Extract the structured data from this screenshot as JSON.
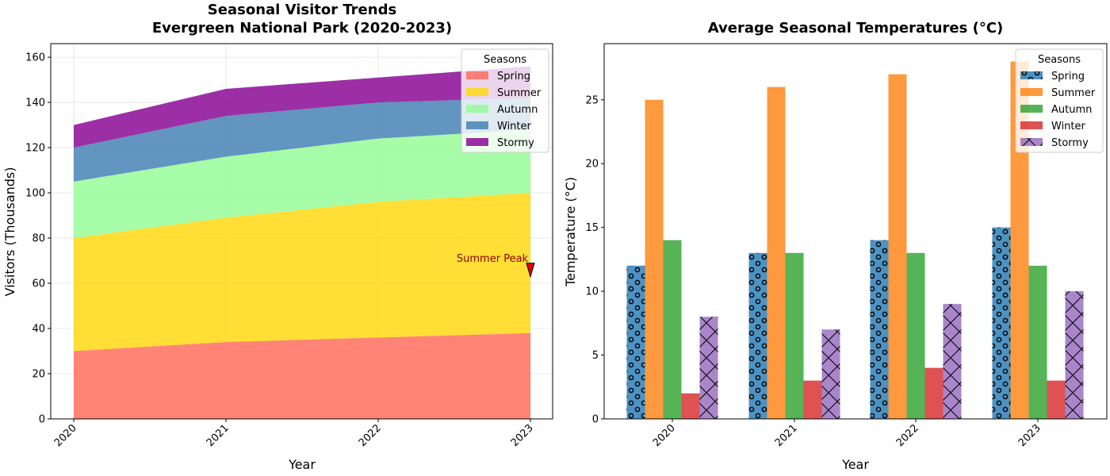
{
  "chart_data": [
    {
      "type": "area",
      "title": "Seasonal Visitor Trends\nEvergreen National Park (2020-2023)",
      "xlabel": "Year",
      "ylabel": "Visitors (Thousands)",
      "x": [
        "2020",
        "2021",
        "2022",
        "2023"
      ],
      "ylim": [
        0,
        166
      ],
      "yticks": [
        0,
        20,
        40,
        60,
        80,
        100,
        120,
        140,
        160
      ],
      "stacked": true,
      "grid": true,
      "legend_title": "Seasons",
      "legend_position": "top-right",
      "series": [
        {
          "name": "Spring",
          "values": [
            30,
            34,
            36,
            38
          ],
          "color": "#ff6f5e"
        },
        {
          "name": "Summer",
          "values": [
            50,
            55,
            60,
            62
          ],
          "color": "#ffd812"
        },
        {
          "name": "Autumn",
          "values": [
            25,
            27,
            28,
            28
          ],
          "color": "#98fb98"
        },
        {
          "name": "Winter",
          "values": [
            15,
            18,
            16,
            14
          ],
          "color": "#4682b4"
        },
        {
          "name": "Stormy",
          "values": [
            10,
            12,
            11,
            14
          ],
          "color": "#8b0a96"
        }
      ],
      "annotation": {
        "text": "Summer Peak",
        "x": "2023",
        "y": 65,
        "color": "#8b0000",
        "marker_color": "#e00000"
      }
    },
    {
      "type": "bar",
      "title": "Average Seasonal Temperatures (°C)",
      "xlabel": "Year",
      "ylabel": "Temperature (°C)",
      "categories": [
        "2020",
        "2021",
        "2022",
        "2023"
      ],
      "ylim": [
        0,
        29.4
      ],
      "yticks": [
        0,
        5,
        10,
        15,
        20,
        25
      ],
      "grid": false,
      "legend_title": "Seasons",
      "legend_position": "top-right",
      "series": [
        {
          "name": "Spring",
          "values": [
            12,
            13,
            14,
            15
          ],
          "color": "#1f77b4",
          "hatch": "circles"
        },
        {
          "name": "Summer",
          "values": [
            25,
            26,
            27,
            28
          ],
          "color": "#ff7f0e",
          "hatch": "none"
        },
        {
          "name": "Autumn",
          "values": [
            14,
            13,
            13,
            12
          ],
          "color": "#2ca02c",
          "hatch": "none"
        },
        {
          "name": "Winter",
          "values": [
            2,
            3,
            4,
            3
          ],
          "color": "#d62728",
          "hatch": "none"
        },
        {
          "name": "Stormy",
          "values": [
            8,
            7,
            9,
            10
          ],
          "color": "#9467bd",
          "hatch": "cross"
        }
      ]
    }
  ]
}
